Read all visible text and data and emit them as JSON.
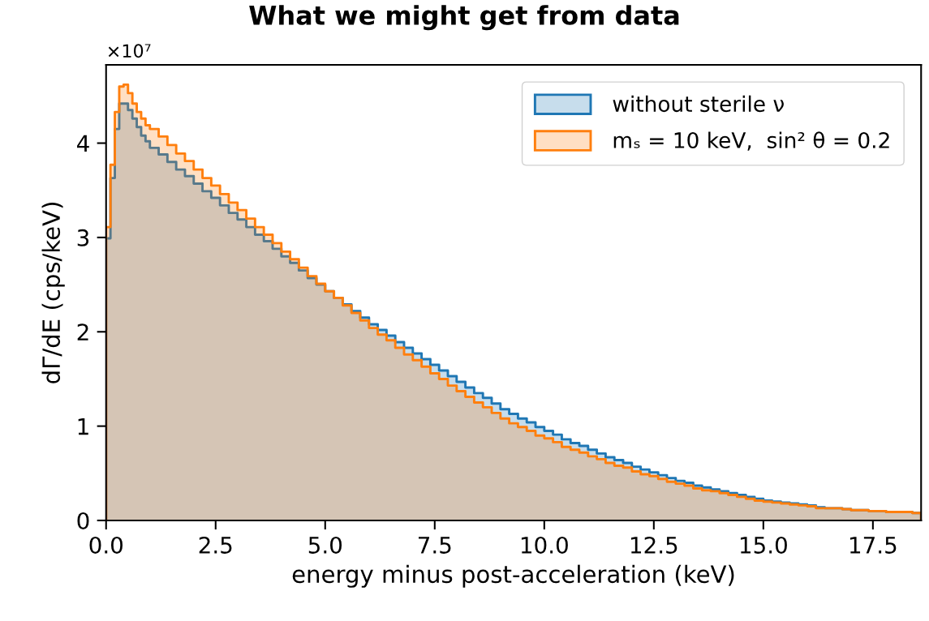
{
  "chart_data": {
    "type": "histogram",
    "title": "What we might get from data",
    "xlabel": "energy minus post-acceleration (keV)",
    "ylabel": "dΓ/dE (cps/keV)",
    "annotations": [
      "×10⁷"
    ],
    "bins": [
      0,
      0.1,
      0.2,
      0.3,
      0.4,
      0.5,
      0.6,
      0.7,
      0.8,
      0.9,
      1.0,
      1.2,
      1.4,
      1.6,
      1.8,
      2.0,
      2.2,
      2.4,
      2.6,
      2.8,
      3.0,
      3.2,
      3.4,
      3.6,
      3.8,
      4.0,
      4.2,
      4.4,
      4.6,
      4.8,
      5.0,
      5.2,
      5.4,
      5.6,
      5.8,
      6.0,
      6.2,
      6.4,
      6.6,
      6.8,
      7.0,
      7.2,
      7.4,
      7.6,
      7.8,
      8.0,
      8.2,
      8.4,
      8.6,
      8.8,
      9.0,
      9.2,
      9.4,
      9.6,
      9.8,
      10.0,
      10.2,
      10.4,
      10.6,
      10.8,
      11.0,
      11.2,
      11.4,
      11.6,
      11.8,
      12.0,
      12.2,
      12.4,
      12.6,
      12.8,
      13.0,
      13.2,
      13.4,
      13.6,
      13.8,
      14.0,
      14.2,
      14.4,
      14.6,
      14.8,
      15.0,
      15.2,
      15.4,
      15.6,
      15.8,
      16.0,
      16.2,
      16.4,
      16.6,
      16.8,
      17.0,
      17.2,
      17.4,
      17.6,
      17.8,
      18.0,
      18.2,
      18.4,
      18.6
    ],
    "series": [
      {
        "name": "without sterile ν",
        "color": "#1f77b4",
        "values": [
          2.99,
          3.63,
          4.15,
          4.42,
          4.42,
          4.35,
          4.26,
          4.17,
          4.08,
          4.02,
          3.95,
          3.88,
          3.8,
          3.72,
          3.65,
          3.57,
          3.49,
          3.42,
          3.34,
          3.26,
          3.19,
          3.11,
          3.03,
          2.96,
          2.88,
          2.8,
          2.73,
          2.65,
          2.57,
          2.5,
          2.43,
          2.36,
          2.29,
          2.22,
          2.15,
          2.08,
          2.02,
          1.96,
          1.89,
          1.83,
          1.77,
          1.71,
          1.65,
          1.59,
          1.53,
          1.47,
          1.41,
          1.35,
          1.3,
          1.24,
          1.18,
          1.13,
          1.08,
          1.04,
          0.99,
          0.95,
          0.91,
          0.86,
          0.82,
          0.79,
          0.75,
          0.71,
          0.67,
          0.64,
          0.61,
          0.57,
          0.54,
          0.51,
          0.48,
          0.45,
          0.42,
          0.4,
          0.37,
          0.35,
          0.33,
          0.31,
          0.29,
          0.27,
          0.25,
          0.23,
          0.21,
          0.2,
          0.19,
          0.18,
          0.17,
          0.16,
          0.14,
          0.13,
          0.13,
          0.12,
          0.11,
          0.11,
          0.1,
          0.1,
          0.09,
          0.09,
          0.09,
          0.08
        ]
      },
      {
        "name": "mₛ = 10 keV,  sin² θ = 0.2",
        "color": "#ff7f0e",
        "values": [
          3.11,
          3.77,
          4.33,
          4.6,
          4.62,
          4.53,
          4.42,
          4.33,
          4.26,
          4.19,
          4.15,
          4.07,
          3.98,
          3.89,
          3.81,
          3.72,
          3.63,
          3.55,
          3.46,
          3.37,
          3.29,
          3.2,
          3.11,
          3.03,
          2.94,
          2.85,
          2.77,
          2.68,
          2.59,
          2.51,
          2.43,
          2.36,
          2.28,
          2.2,
          2.12,
          2.04,
          1.97,
          1.91,
          1.83,
          1.76,
          1.7,
          1.63,
          1.56,
          1.5,
          1.43,
          1.37,
          1.31,
          1.25,
          1.2,
          1.14,
          1.08,
          1.03,
          0.99,
          0.95,
          0.9,
          0.87,
          0.83,
          0.78,
          0.75,
          0.72,
          0.68,
          0.65,
          0.61,
          0.58,
          0.56,
          0.52,
          0.49,
          0.47,
          0.44,
          0.41,
          0.39,
          0.37,
          0.34,
          0.32,
          0.31,
          0.29,
          0.27,
          0.25,
          0.23,
          0.21,
          0.2,
          0.19,
          0.18,
          0.17,
          0.16,
          0.15,
          0.13,
          0.13,
          0.13,
          0.12,
          0.11,
          0.11,
          0.1,
          0.1,
          0.09,
          0.09,
          0.09,
          0.08
        ]
      }
    ],
    "xlim": [
      0,
      18.6
    ],
    "ylim": [
      0,
      4.83
    ],
    "xticks": [
      {
        "value": 0,
        "label": "0.0"
      },
      2.5,
      {
        "value": 5,
        "label": "5.0"
      },
      7.5,
      {
        "value": 10,
        "label": "10.0"
      },
      12.5,
      {
        "value": 15,
        "label": "15.0"
      },
      17.5
    ],
    "yticks": [
      0,
      1,
      2,
      3,
      4
    ],
    "legend": "top right"
  }
}
